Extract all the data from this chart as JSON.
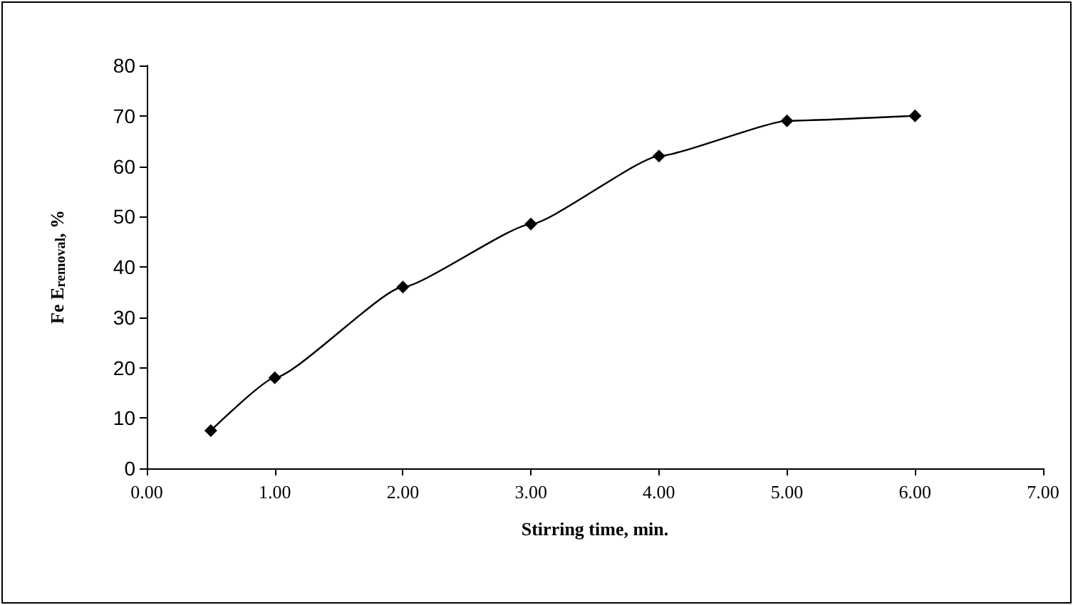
{
  "chart_data": {
    "type": "line",
    "xlabel": "Stirring time, min.",
    "ylabel": "Fe E$_{removal}$, %",
    "x": [
      0.5,
      1,
      2,
      3,
      4,
      5,
      6
    ],
    "series": [
      {
        "color": "#000000",
        "values": [
          7.5,
          18,
          36,
          48.5,
          62,
          69,
          70
        ]
      }
    ],
    "xlim": [
      0,
      7
    ],
    "xticks": [
      {
        "value": 0,
        "label": "0.00"
      },
      {
        "value": 1,
        "label": "1.00"
      },
      {
        "value": 2,
        "label": "2.00"
      },
      {
        "value": 3,
        "label": "3.00"
      },
      {
        "value": 4,
        "label": "4.00"
      },
      {
        "value": 5,
        "label": "5.00"
      },
      {
        "value": 6,
        "label": "6.00"
      },
      {
        "value": 7,
        "label": "7.00"
      }
    ],
    "ylim": [
      0,
      80
    ],
    "yticks": [
      0,
      10,
      20,
      30,
      40,
      50,
      60,
      70,
      80
    ],
    "grid": false,
    "marker": "diamond",
    "line_style": "solid"
  }
}
